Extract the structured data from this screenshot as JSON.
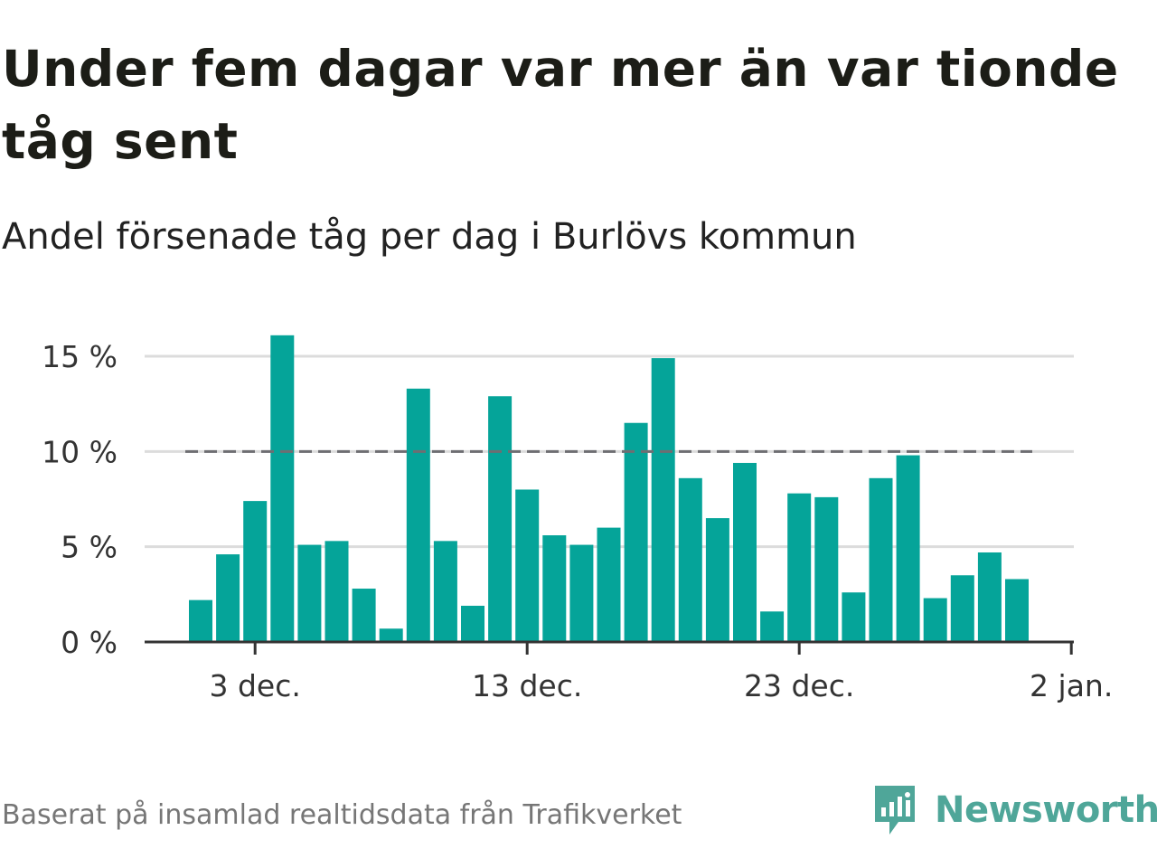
{
  "header": {
    "title": "Under fem dagar var mer än var tionde tåg sent",
    "subtitle": "Andel försenade tåg per dag i Burlövs kommun"
  },
  "footer": {
    "source": "Baserat på insamlad realtidsdata från Trafikverket",
    "brand": "Newsworthy"
  },
  "colors": {
    "bar": "#05a499",
    "threshold": "#6e6e72",
    "grid": "#dcdcdc",
    "axis": "#333333",
    "brand": "#4fa699"
  },
  "chart_data": {
    "type": "bar",
    "title": "Under fem dagar var mer än var tionde tåg sent",
    "subtitle": "Andel försenade tåg per dag i Burlövs kommun",
    "x": [
      "2018-12-01",
      "2018-12-02",
      "2018-12-03",
      "2018-12-04",
      "2018-12-05",
      "2018-12-06",
      "2018-12-07",
      "2018-12-08",
      "2018-12-09",
      "2018-12-10",
      "2018-12-11",
      "2018-12-12",
      "2018-12-13",
      "2018-12-14",
      "2018-12-15",
      "2018-12-16",
      "2018-12-17",
      "2018-12-18",
      "2018-12-19",
      "2018-12-20",
      "2018-12-21",
      "2018-12-22",
      "2018-12-23",
      "2018-12-24",
      "2018-12-25",
      "2018-12-26",
      "2018-12-27",
      "2018-12-28",
      "2018-12-29",
      "2018-12-30",
      "2018-12-31"
    ],
    "values": [
      2.2,
      4.6,
      7.4,
      16.1,
      5.1,
      5.3,
      2.8,
      0.7,
      13.3,
      5.3,
      1.9,
      12.9,
      8.0,
      5.6,
      5.1,
      6.0,
      11.5,
      14.9,
      8.6,
      6.5,
      9.4,
      1.6,
      7.8,
      7.6,
      2.6,
      8.6,
      9.8,
      2.3,
      3.5,
      4.7,
      3.3
    ],
    "threshold": 10,
    "x_ticks": [
      "3 dec.",
      "13 dec.",
      "23 dec.",
      "2 jan."
    ],
    "y_ticks": [
      "0 %",
      "5 %",
      "10 %",
      "15 %"
    ],
    "y_tick_values": [
      0,
      5,
      10,
      15
    ],
    "ylim": [
      0,
      16.5
    ],
    "xlabel": "",
    "ylabel": "",
    "grid": true
  }
}
